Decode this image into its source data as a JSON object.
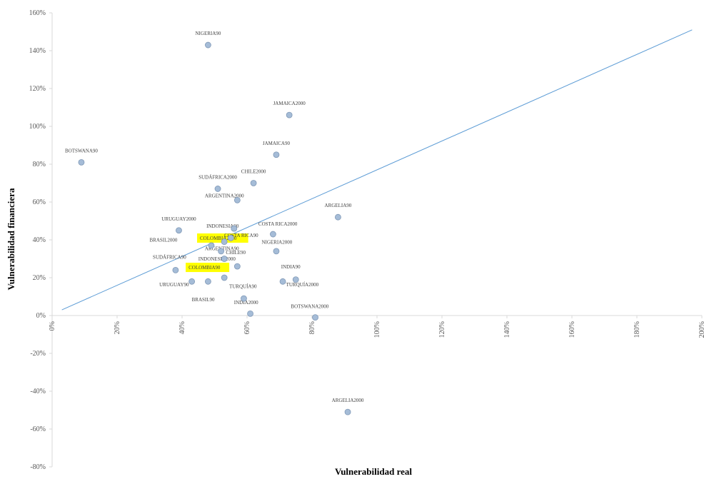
{
  "chart_data": {
    "type": "scatter",
    "xlabel": "Vulnerabilidad real",
    "ylabel": "Vulnerabilidad financiera",
    "xlim": [
      0,
      2
    ],
    "ylim": [
      -0.8,
      1.6
    ],
    "x_ticks": [
      {
        "value": 0,
        "label": "0%"
      },
      {
        "value": 0.2,
        "label": "20%"
      },
      {
        "value": 0.4,
        "label": "40%"
      },
      {
        "value": 0.6,
        "label": "60%"
      },
      {
        "value": 0.8,
        "label": "80%"
      },
      {
        "value": 1.0,
        "label": "100%"
      },
      {
        "value": 1.2,
        "label": "120%"
      },
      {
        "value": 1.4,
        "label": "140%"
      },
      {
        "value": 1.6,
        "label": "160%"
      },
      {
        "value": 1.8,
        "label": "180%"
      },
      {
        "value": 2.0,
        "label": "200%"
      }
    ],
    "y_ticks": [
      {
        "value": 1.6,
        "label": "160%"
      },
      {
        "value": 1.4,
        "label": "140%"
      },
      {
        "value": 1.2,
        "label": "120%"
      },
      {
        "value": 1.0,
        "label": "100%"
      },
      {
        "value": 0.8,
        "label": "80%"
      },
      {
        "value": 0.6,
        "label": "60%"
      },
      {
        "value": 0.4,
        "label": "40%"
      },
      {
        "value": 0.2,
        "label": "20%"
      },
      {
        "value": 0,
        "label": "0%"
      },
      {
        "value": -0.2,
        "label": "-20%"
      },
      {
        "value": -0.4,
        "label": "-40%"
      },
      {
        "value": -0.6,
        "label": "-60%"
      },
      {
        "value": -0.8,
        "label": "-80%"
      }
    ],
    "trendline": {
      "x": [
        0.03,
        1.97
      ],
      "y": [
        0.03,
        1.51
      ],
      "color": "#5b9bd5"
    },
    "marker_color": "#a5bcd7",
    "marker_edge": "#7f98b6",
    "highlight_color": "#ffff00",
    "points": [
      {
        "label": "NIGERIA90",
        "x": 0.48,
        "y": 1.43,
        "label_pos": "above"
      },
      {
        "label": "JAMAICA2000",
        "x": 0.73,
        "y": 1.06,
        "label_pos": "above"
      },
      {
        "label": "BOTSWANA90",
        "x": 0.09,
        "y": 0.81,
        "label_pos": "above"
      },
      {
        "label": "JAMAICA90",
        "x": 0.69,
        "y": 0.85,
        "label_pos": "above"
      },
      {
        "label": "SUDÁFRICA2000",
        "x": 0.51,
        "y": 0.67,
        "label_pos": "above"
      },
      {
        "label": "CHILE2000",
        "x": 0.62,
        "y": 0.7,
        "label_pos": "above"
      },
      {
        "label": "ARGENTINA2000",
        "x": 0.57,
        "y": 0.61,
        "label_pos": "none"
      },
      {
        "label": "ARGELIA90",
        "x": 0.88,
        "y": 0.52,
        "label_pos": "above"
      },
      {
        "label": "URUGUAY2000",
        "x": 0.39,
        "y": 0.45,
        "label_pos": "above"
      },
      {
        "label": "INDONESIA90",
        "x": 0.56,
        "y": 0.46,
        "label_pos": "none"
      },
      {
        "label": "COSTA RICA2000",
        "x": 0.68,
        "y": 0.43,
        "label_pos": "none"
      },
      {
        "label": "BRASIL2000",
        "x": 0.49,
        "y": 0.37,
        "label_pos": "none"
      },
      {
        "label": "COLOMBIA2000",
        "x": 0.53,
        "y": 0.39,
        "label_pos": "none"
      },
      {
        "label": "COSTA RICA90",
        "x": 0.55,
        "y": 0.41,
        "label_pos": "none"
      },
      {
        "label": "NIGERIA2000",
        "x": 0.69,
        "y": 0.34,
        "label_pos": "none"
      },
      {
        "label": "ARGENTINA90",
        "x": 0.52,
        "y": 0.34,
        "label_pos": "none"
      },
      {
        "label": "CHILE90",
        "x": 0.57,
        "y": 0.26,
        "label_pos": "none"
      },
      {
        "label": "INDONESIA2000",
        "x": 0.53,
        "y": 0.3,
        "label_pos": "none"
      },
      {
        "label": "SUDÁFRICA90",
        "x": 0.38,
        "y": 0.24,
        "label_pos": "none"
      },
      {
        "label": "COLOMBIA90",
        "x": 0.53,
        "y": 0.2,
        "label_pos": "none"
      },
      {
        "label": "INDIA90",
        "x": 0.71,
        "y": 0.18,
        "label_pos": "none"
      },
      {
        "label": "TURQUÍA2000",
        "x": 0.75,
        "y": 0.19,
        "label_pos": "none"
      },
      {
        "label": "URUGUAY90",
        "x": 0.43,
        "y": 0.18,
        "label_pos": "none"
      },
      {
        "label": "BRASIL90",
        "x": 0.48,
        "y": 0.18,
        "label_pos": "none"
      },
      {
        "label": "TURQUÍA90",
        "x": 0.59,
        "y": 0.09,
        "label_pos": "none"
      },
      {
        "label": "INDIA2000",
        "x": 0.61,
        "y": 0.01,
        "label_pos": "none"
      },
      {
        "label": "BOTSWANA2000",
        "x": 0.81,
        "y": -0.01,
        "label_pos": "none"
      },
      {
        "label": "ARGELIA2000",
        "x": 0.91,
        "y": -0.51,
        "label_pos": "above"
      }
    ],
    "free_labels": [
      {
        "text": "ARGENTINA2000",
        "x": 0.47,
        "y": 0.625,
        "anchor": "start",
        "highlight": false
      },
      {
        "text": "INDONESIA90",
        "x": 0.475,
        "y": 0.465,
        "anchor": "start",
        "highlight": false
      },
      {
        "text": "COSTA RICA2000",
        "x": 0.635,
        "y": 0.475,
        "anchor": "start",
        "highlight": false
      },
      {
        "text": "BRASIL2000",
        "x": 0.3,
        "y": 0.39,
        "anchor": "start",
        "highlight": false
      },
      {
        "text": "COLOMBIA2000",
        "x": 0.455,
        "y": 0.4,
        "anchor": "start",
        "highlight": true
      },
      {
        "text": "COSTA RICA90",
        "x": 0.53,
        "y": 0.415,
        "anchor": "start",
        "highlight": false
      },
      {
        "text": "NIGERIA2000",
        "x": 0.645,
        "y": 0.38,
        "anchor": "start",
        "highlight": false
      },
      {
        "text": "ARGENTINA90",
        "x": 0.47,
        "y": 0.345,
        "anchor": "start",
        "highlight": false
      },
      {
        "text": "CHILE90",
        "x": 0.535,
        "y": 0.325,
        "anchor": "start",
        "highlight": false
      },
      {
        "text": "INDONESIA2000",
        "x": 0.45,
        "y": 0.29,
        "anchor": "start",
        "highlight": false
      },
      {
        "text": "SUDÁFRICA90",
        "x": 0.31,
        "y": 0.3,
        "anchor": "start",
        "highlight": false
      },
      {
        "text": "COLOMBIA90",
        "x": 0.42,
        "y": 0.245,
        "anchor": "start",
        "highlight": true
      },
      {
        "text": "INDIA90",
        "x": 0.705,
        "y": 0.25,
        "anchor": "start",
        "highlight": false
      },
      {
        "text": "TURQUÍA2000",
        "x": 0.72,
        "y": 0.155,
        "anchor": "start",
        "highlight": false
      },
      {
        "text": "URUGUAY90",
        "x": 0.33,
        "y": 0.155,
        "anchor": "start",
        "highlight": false
      },
      {
        "text": "BRASIL90",
        "x": 0.43,
        "y": 0.075,
        "anchor": "start",
        "highlight": false
      },
      {
        "text": "TURQUÍA90",
        "x": 0.545,
        "y": 0.145,
        "anchor": "start",
        "highlight": false
      },
      {
        "text": "INDIA2000",
        "x": 0.56,
        "y": 0.06,
        "anchor": "start",
        "highlight": false
      },
      {
        "text": "BOTSWANA2000",
        "x": 0.735,
        "y": 0.04,
        "anchor": "start",
        "highlight": false
      }
    ]
  }
}
